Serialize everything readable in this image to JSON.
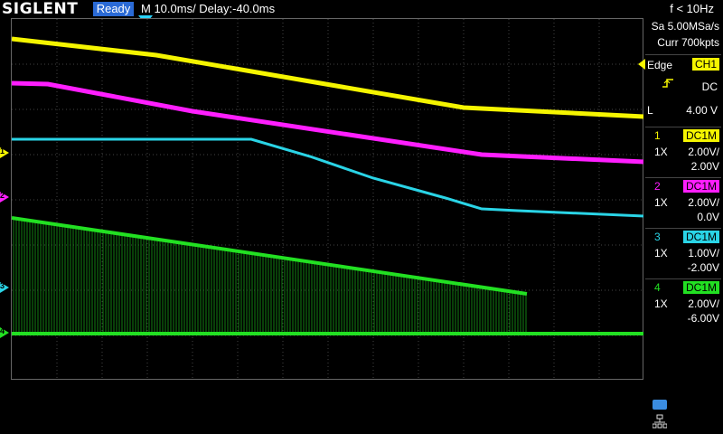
{
  "topbar": {
    "brand": "SIGLENT",
    "status": "Ready",
    "timebase": "M 10.0ms/ Delay:-40.0ms",
    "frequency": "f < 10Hz"
  },
  "acquisition": {
    "sample_rate": "Sa 5.00MSa/s",
    "memory": "Curr 700kpts"
  },
  "trigger": {
    "type": "Edge",
    "source": "CH1",
    "slope_icon": "rising-edge-icon",
    "coupling": "DC",
    "level_label": "L",
    "level": "4.00 V"
  },
  "channels": [
    {
      "num": "1",
      "coupling": "DC1M",
      "probe": "1X",
      "scale": "2.00V/",
      "offset": "2.00V",
      "color": "#f5f500"
    },
    {
      "num": "2",
      "coupling": "DC1M",
      "probe": "1X",
      "scale": "2.00V/",
      "offset": "0.0V",
      "color": "#ff1eff"
    },
    {
      "num": "3",
      "coupling": "DC1M",
      "probe": "1X",
      "scale": "1.00V/",
      "offset": "-2.00V",
      "color": "#2ad4e6"
    },
    {
      "num": "4",
      "coupling": "DC1M",
      "probe": "1X",
      "scale": "2.00V/",
      "offset": "-6.00V",
      "color": "#22e022"
    }
  ],
  "icons": [
    "usb-icon",
    "network-icon",
    "trigger-position-icon"
  ]
}
